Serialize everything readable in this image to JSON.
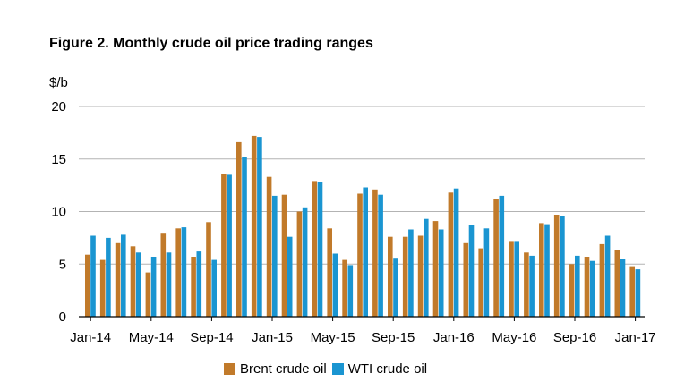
{
  "title": "Figure 2. Monthly crude oil price trading ranges",
  "chart_data": {
    "type": "bar",
    "title": "Figure 2. Monthly crude oil price trading ranges",
    "ylabel": "$/b",
    "xlabel": "",
    "ylim": [
      0,
      20
    ],
    "yticks": [
      0,
      5,
      10,
      15,
      20
    ],
    "grid": true,
    "legend_position": "bottom",
    "categories": [
      "Jan-14",
      "Feb-14",
      "Mar-14",
      "Apr-14",
      "May-14",
      "Jun-14",
      "Jul-14",
      "Aug-14",
      "Sep-14",
      "Oct-14",
      "Nov-14",
      "Dec-14",
      "Jan-15",
      "Feb-15",
      "Mar-15",
      "Apr-15",
      "May-15",
      "Jun-15",
      "Jul-15",
      "Aug-15",
      "Sep-15",
      "Oct-15",
      "Nov-15",
      "Dec-15",
      "Jan-16",
      "Feb-16",
      "Mar-16",
      "Apr-16",
      "May-16",
      "Jun-16",
      "Jul-16",
      "Aug-16",
      "Sep-16",
      "Oct-16",
      "Nov-16",
      "Dec-16",
      "Jan-17"
    ],
    "xtick_labels": [
      {
        "index": 0,
        "label": "Jan-14"
      },
      {
        "index": 4,
        "label": "May-14"
      },
      {
        "index": 8,
        "label": "Sep-14"
      },
      {
        "index": 12,
        "label": "Jan-15"
      },
      {
        "index": 16,
        "label": "May-15"
      },
      {
        "index": 20,
        "label": "Sep-15"
      },
      {
        "index": 24,
        "label": "Jan-16"
      },
      {
        "index": 28,
        "label": "May-16"
      },
      {
        "index": 32,
        "label": "Sep-16"
      },
      {
        "index": 36,
        "label": "Jan-17"
      }
    ],
    "series": [
      {
        "name": "Brent crude oil",
        "color": "#c17a2a",
        "values": [
          5.9,
          5.4,
          7.0,
          6.7,
          4.2,
          7.9,
          8.4,
          5.7,
          9.0,
          13.6,
          16.6,
          17.2,
          13.3,
          11.6,
          10.0,
          12.9,
          8.4,
          5.4,
          11.7,
          12.1,
          7.6,
          7.6,
          7.7,
          9.1,
          11.8,
          7.0,
          6.5,
          11.2,
          7.2,
          6.1,
          8.9,
          9.7,
          5.0,
          5.7,
          6.9,
          6.3,
          4.8
        ]
      },
      {
        "name": "WTI crude oil",
        "color": "#1a95d1",
        "values": [
          7.7,
          7.5,
          7.8,
          6.1,
          5.7,
          6.1,
          8.5,
          6.2,
          5.4,
          13.5,
          15.2,
          17.1,
          11.5,
          7.6,
          10.4,
          12.8,
          6.0,
          4.9,
          12.3,
          11.6,
          5.6,
          8.3,
          9.3,
          8.3,
          12.2,
          8.7,
          8.4,
          11.5,
          7.2,
          5.8,
          8.8,
          9.6,
          5.8,
          5.3,
          7.7,
          5.5,
          4.5
        ]
      }
    ]
  }
}
